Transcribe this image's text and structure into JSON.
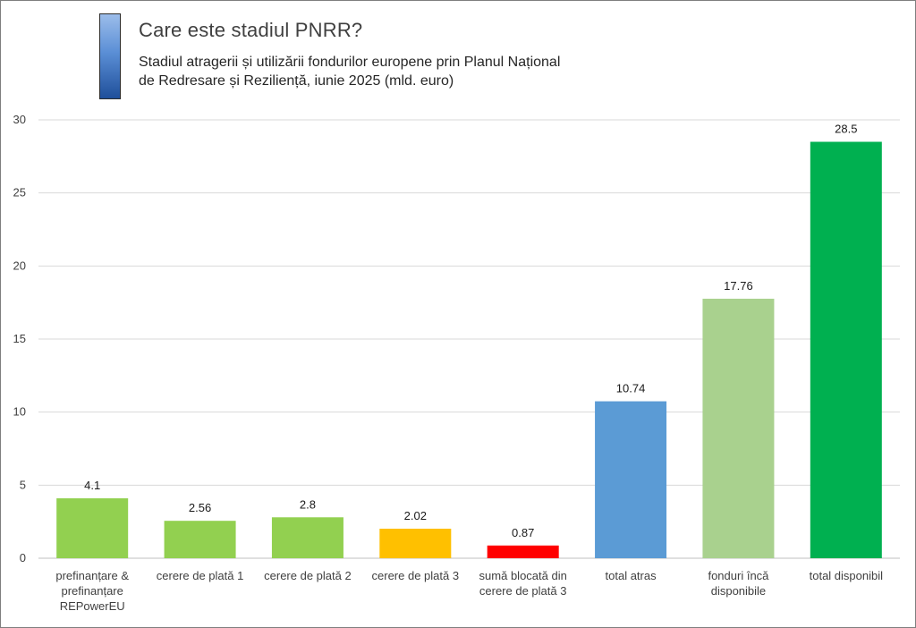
{
  "header": {
    "title": "Care este stadiul PNRR?",
    "subtitle_line1": "Stadiul atragerii și utilizării fondurilor europene prin Planul Național",
    "subtitle_line2": "de Redresare și Reziliență, iunie 2025 (mld. euro)"
  },
  "chart_data": {
    "type": "bar",
    "title": "Care este stadiul PNRR?",
    "subtitle": "Stadiul atragerii și utilizării fondurilor europene prin Planul Național de Redresare și Reziliență, iunie 2025 (mld. euro)",
    "xlabel": "",
    "ylabel": "",
    "ylim": [
      0,
      30
    ],
    "yticks": [
      0,
      5,
      10,
      15,
      20,
      25,
      30
    ],
    "grid": true,
    "legend": "none",
    "categories": [
      [
        "prefinanțare &",
        "prefinanțare",
        "REPowerEU"
      ],
      [
        "cerere de plată 1"
      ],
      [
        "cerere de plată 2"
      ],
      [
        "cerere de plată 3"
      ],
      [
        "sumă blocată din",
        "cerere de plată 3"
      ],
      [
        "total atras"
      ],
      [
        "fonduri încă",
        "disponibile"
      ],
      [
        "total disponibil"
      ]
    ],
    "values": [
      4.1,
      2.56,
      2.8,
      2.02,
      0.87,
      10.74,
      17.76,
      28.5
    ],
    "value_labels": [
      "4.1",
      "2.56",
      "2.8",
      "2.02",
      "0.87",
      "10.74",
      "17.76",
      "28.5"
    ],
    "colors": [
      "#92d050",
      "#92d050",
      "#92d050",
      "#ffc000",
      "#ff0000",
      "#5b9bd5",
      "#a9d18e",
      "#00b050"
    ]
  }
}
